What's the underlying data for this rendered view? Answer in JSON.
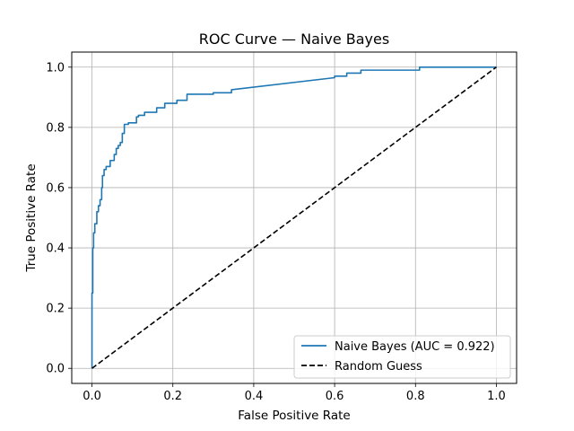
{
  "chart_data": {
    "type": "line",
    "title": "ROC Curve — Naive Bayes",
    "xlabel": "False Positive Rate",
    "ylabel": "True Positive Rate",
    "xlim": [
      -0.05,
      1.05
    ],
    "ylim": [
      -0.05,
      1.05
    ],
    "xticks": [
      0.0,
      0.2,
      0.4,
      0.6,
      0.8,
      1.0
    ],
    "yticks": [
      0.0,
      0.2,
      0.4,
      0.6,
      0.8,
      1.0
    ],
    "tick_labels": [
      "0.0",
      "0.2",
      "0.4",
      "0.6",
      "0.8",
      "1.0"
    ],
    "grid": true,
    "legend_position": "lower-right",
    "series": [
      {
        "name": "Naive Bayes (AUC = 0.922)",
        "color": "#1f77b4",
        "style": "solid",
        "x": [
          0.0,
          0.0,
          0.002,
          0.002,
          0.004,
          0.004,
          0.007,
          0.007,
          0.012,
          0.012,
          0.016,
          0.016,
          0.02,
          0.02,
          0.024,
          0.024,
          0.026,
          0.026,
          0.03,
          0.03,
          0.035,
          0.035,
          0.045,
          0.045,
          0.055,
          0.055,
          0.06,
          0.06,
          0.065,
          0.065,
          0.07,
          0.07,
          0.075,
          0.075,
          0.08,
          0.08,
          0.09,
          0.09,
          0.11,
          0.11,
          0.115,
          0.115,
          0.13,
          0.13,
          0.16,
          0.16,
          0.18,
          0.18,
          0.21,
          0.21,
          0.235,
          0.235,
          0.3,
          0.3,
          0.345,
          0.345,
          0.6,
          0.6,
          0.63,
          0.63,
          0.665,
          0.665,
          0.81,
          0.81,
          1.0
        ],
        "y": [
          0.0,
          0.25,
          0.25,
          0.4,
          0.4,
          0.45,
          0.45,
          0.48,
          0.48,
          0.52,
          0.52,
          0.54,
          0.54,
          0.56,
          0.56,
          0.6,
          0.6,
          0.64,
          0.64,
          0.66,
          0.66,
          0.67,
          0.67,
          0.69,
          0.69,
          0.71,
          0.71,
          0.73,
          0.73,
          0.74,
          0.74,
          0.75,
          0.75,
          0.78,
          0.78,
          0.81,
          0.81,
          0.815,
          0.815,
          0.835,
          0.835,
          0.84,
          0.84,
          0.85,
          0.85,
          0.865,
          0.865,
          0.88,
          0.88,
          0.89,
          0.89,
          0.91,
          0.91,
          0.915,
          0.915,
          0.925,
          0.965,
          0.97,
          0.97,
          0.98,
          0.98,
          0.99,
          0.99,
          1.0,
          1.0
        ]
      },
      {
        "name": "Random Guess",
        "color": "#000000",
        "style": "dashed",
        "x": [
          0.0,
          1.0
        ],
        "y": [
          0.0,
          1.0
        ]
      }
    ]
  }
}
